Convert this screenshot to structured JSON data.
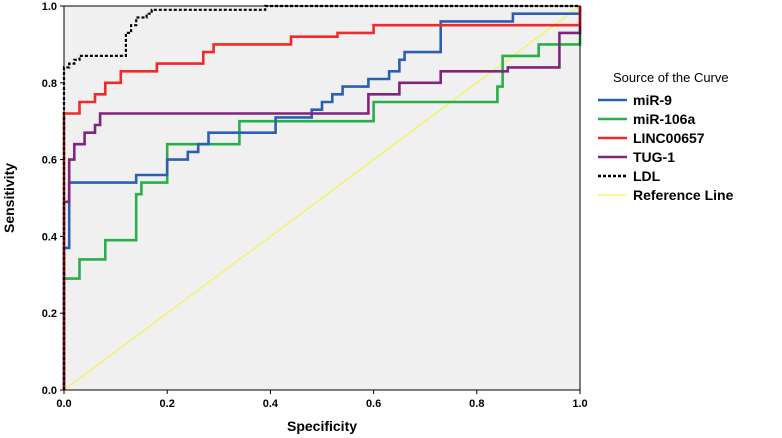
{
  "chart_data": {
    "type": "line",
    "xlabel": "Specificity",
    "ylabel": "Sensitivity",
    "xlim": [
      0,
      1
    ],
    "ylim": [
      0,
      1
    ],
    "x_ticks": [
      "0.0",
      "0.2",
      "0.4",
      "0.6",
      "0.8",
      "1.0"
    ],
    "y_ticks": [
      "0.0",
      "0.2",
      "0.4",
      "0.6",
      "0.8",
      "1.0"
    ],
    "grid": false,
    "plot_background": "#f0f0f0",
    "legend": {
      "title": "Source of the Curve",
      "placement": "right"
    },
    "series": [
      {
        "name": "miR-9",
        "color": "#2b5fb4",
        "step": true,
        "points": [
          [
            0,
            0
          ],
          [
            0,
            0.37
          ],
          [
            0.01,
            0.37
          ],
          [
            0.01,
            0.54
          ],
          [
            0.14,
            0.54
          ],
          [
            0.14,
            0.56
          ],
          [
            0.2,
            0.56
          ],
          [
            0.2,
            0.6
          ],
          [
            0.24,
            0.6
          ],
          [
            0.24,
            0.62
          ],
          [
            0.26,
            0.62
          ],
          [
            0.26,
            0.64
          ],
          [
            0.28,
            0.64
          ],
          [
            0.28,
            0.67
          ],
          [
            0.41,
            0.67
          ],
          [
            0.41,
            0.71
          ],
          [
            0.48,
            0.71
          ],
          [
            0.48,
            0.73
          ],
          [
            0.5,
            0.73
          ],
          [
            0.5,
            0.75
          ],
          [
            0.52,
            0.75
          ],
          [
            0.52,
            0.77
          ],
          [
            0.54,
            0.77
          ],
          [
            0.54,
            0.79
          ],
          [
            0.59,
            0.79
          ],
          [
            0.59,
            0.81
          ],
          [
            0.63,
            0.81
          ],
          [
            0.63,
            0.83
          ],
          [
            0.65,
            0.83
          ],
          [
            0.65,
            0.86
          ],
          [
            0.66,
            0.86
          ],
          [
            0.66,
            0.88
          ],
          [
            0.73,
            0.88
          ],
          [
            0.73,
            0.96
          ],
          [
            0.87,
            0.96
          ],
          [
            0.87,
            0.98
          ],
          [
            1,
            0.98
          ],
          [
            1,
            1
          ]
        ]
      },
      {
        "name": "miR-106a",
        "color": "#27b04a",
        "step": true,
        "points": [
          [
            0,
            0
          ],
          [
            0,
            0.29
          ],
          [
            0.03,
            0.29
          ],
          [
            0.03,
            0.34
          ],
          [
            0.08,
            0.34
          ],
          [
            0.08,
            0.39
          ],
          [
            0.14,
            0.39
          ],
          [
            0.14,
            0.51
          ],
          [
            0.15,
            0.51
          ],
          [
            0.15,
            0.54
          ],
          [
            0.2,
            0.54
          ],
          [
            0.2,
            0.64
          ],
          [
            0.34,
            0.64
          ],
          [
            0.34,
            0.7
          ],
          [
            0.6,
            0.7
          ],
          [
            0.6,
            0.75
          ],
          [
            0.84,
            0.75
          ],
          [
            0.84,
            0.79
          ],
          [
            0.85,
            0.79
          ],
          [
            0.85,
            0.87
          ],
          [
            0.92,
            0.87
          ],
          [
            0.92,
            0.9
          ],
          [
            1,
            0.9
          ],
          [
            1,
            1
          ]
        ]
      },
      {
        "name": "LINC00657",
        "color": "#f02a2a",
        "step": true,
        "points": [
          [
            0,
            0
          ],
          [
            0,
            0.72
          ],
          [
            0.03,
            0.72
          ],
          [
            0.03,
            0.75
          ],
          [
            0.06,
            0.75
          ],
          [
            0.06,
            0.77
          ],
          [
            0.08,
            0.77
          ],
          [
            0.08,
            0.8
          ],
          [
            0.11,
            0.8
          ],
          [
            0.11,
            0.83
          ],
          [
            0.18,
            0.83
          ],
          [
            0.18,
            0.85
          ],
          [
            0.27,
            0.85
          ],
          [
            0.27,
            0.88
          ],
          [
            0.29,
            0.88
          ],
          [
            0.29,
            0.9
          ],
          [
            0.44,
            0.9
          ],
          [
            0.44,
            0.92
          ],
          [
            0.53,
            0.92
          ],
          [
            0.53,
            0.93
          ],
          [
            0.6,
            0.93
          ],
          [
            0.6,
            0.95
          ],
          [
            1,
            0.95
          ],
          [
            1,
            1
          ]
        ]
      },
      {
        "name": "TUG-1",
        "color": "#82237e",
        "step": true,
        "points": [
          [
            0,
            0
          ],
          [
            0,
            0.49
          ],
          [
            0.01,
            0.49
          ],
          [
            0.01,
            0.6
          ],
          [
            0.02,
            0.6
          ],
          [
            0.02,
            0.64
          ],
          [
            0.04,
            0.64
          ],
          [
            0.04,
            0.67
          ],
          [
            0.06,
            0.67
          ],
          [
            0.06,
            0.69
          ],
          [
            0.07,
            0.69
          ],
          [
            0.07,
            0.72
          ],
          [
            0.59,
            0.72
          ],
          [
            0.59,
            0.77
          ],
          [
            0.65,
            0.77
          ],
          [
            0.65,
            0.8
          ],
          [
            0.73,
            0.8
          ],
          [
            0.73,
            0.83
          ],
          [
            0.86,
            0.83
          ],
          [
            0.86,
            0.84
          ],
          [
            0.96,
            0.84
          ],
          [
            0.96,
            0.93
          ],
          [
            1,
            0.93
          ],
          [
            1,
            1
          ]
        ]
      },
      {
        "name": "LDL",
        "color": "#000000",
        "dashed": true,
        "step": true,
        "points": [
          [
            0,
            0
          ],
          [
            0,
            0.84
          ],
          [
            0.01,
            0.84
          ],
          [
            0.01,
            0.85
          ],
          [
            0.02,
            0.85
          ],
          [
            0.02,
            0.86
          ],
          [
            0.03,
            0.86
          ],
          [
            0.03,
            0.87
          ],
          [
            0.12,
            0.87
          ],
          [
            0.12,
            0.93
          ],
          [
            0.13,
            0.93
          ],
          [
            0.13,
            0.95
          ],
          [
            0.14,
            0.95
          ],
          [
            0.14,
            0.97
          ],
          [
            0.16,
            0.97
          ],
          [
            0.16,
            0.98
          ],
          [
            0.17,
            0.98
          ],
          [
            0.17,
            0.99
          ],
          [
            0.39,
            0.99
          ],
          [
            0.39,
            1
          ],
          [
            1,
            1
          ]
        ]
      },
      {
        "name": "Reference Line",
        "color": "#f5f24c",
        "step": false,
        "points": [
          [
            0,
            0
          ],
          [
            1,
            1
          ]
        ]
      }
    ]
  }
}
